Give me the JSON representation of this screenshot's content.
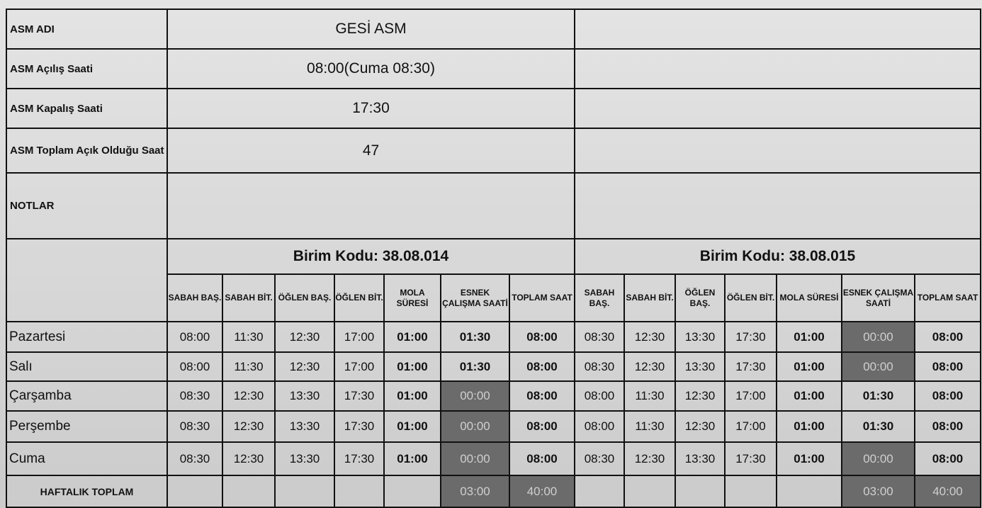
{
  "info": [
    {
      "label": "ASM ADI",
      "value": "GESİ ASM"
    },
    {
      "label": "ASM Açılış Saati",
      "value": "08:00(Cuma 08:30)"
    },
    {
      "label": "ASM Kapalış Saati",
      "value": "17:30"
    },
    {
      "label": "ASM Toplam Açık Olduğu Saat",
      "value": "47"
    },
    {
      "label": "NOTLAR",
      "value": ""
    }
  ],
  "units": [
    {
      "title": "Birim Kodu: 38.08.014",
      "rows": [
        [
          "08:00",
          "11:30",
          "12:30",
          "17:00",
          "01:00",
          "01:30",
          "08:00"
        ],
        [
          "08:00",
          "11:30",
          "12:30",
          "17:00",
          "01:00",
          "01:30",
          "08:00"
        ],
        [
          "08:30",
          "12:30",
          "13:30",
          "17:30",
          "01:00",
          "00:00",
          "08:00"
        ],
        [
          "08:30",
          "12:30",
          "13:30",
          "17:30",
          "01:00",
          "00:00",
          "08:00"
        ],
        [
          "08:30",
          "12:30",
          "13:30",
          "17:30",
          "01:00",
          "00:00",
          "08:00"
        ]
      ],
      "esnek_dark": [
        false,
        false,
        true,
        true,
        true
      ],
      "totals": [
        "",
        "",
        "",
        "",
        "",
        "03:00",
        "40:00"
      ]
    },
    {
      "title": "Birim Kodu: 38.08.015",
      "rows": [
        [
          "08:30",
          "12:30",
          "13:30",
          "17:30",
          "01:00",
          "00:00",
          "08:00"
        ],
        [
          "08:30",
          "12:30",
          "13:30",
          "17:30",
          "01:00",
          "00:00",
          "08:00"
        ],
        [
          "08:00",
          "11:30",
          "12:30",
          "17:00",
          "01:00",
          "01:30",
          "08:00"
        ],
        [
          "08:00",
          "11:30",
          "12:30",
          "17:00",
          "01:00",
          "01:30",
          "08:00"
        ],
        [
          "08:30",
          "12:30",
          "13:30",
          "17:30",
          "01:00",
          "00:00",
          "08:00"
        ]
      ],
      "esnek_dark": [
        true,
        true,
        false,
        false,
        true
      ],
      "totals": [
        "",
        "",
        "",
        "",
        "",
        "03:00",
        "40:00"
      ]
    }
  ],
  "columns": [
    "SABAH BAŞ.",
    "SABAH BİT.",
    "ÖĞLEN BAŞ.",
    "ÖĞLEN BİT.",
    "MOLA SÜRESİ",
    "ESNEK ÇALIŞMA SAATİ",
    "TOPLAM SAAT"
  ],
  "days": [
    "Pazartesi",
    "Salı",
    "Çarşamba",
    "Perşembe",
    "Cuma"
  ],
  "total_label": "HAFTALIK TOPLAM",
  "colors": {
    "dark_cell": "#6b6b6b",
    "paper": "#d8d8d8"
  }
}
